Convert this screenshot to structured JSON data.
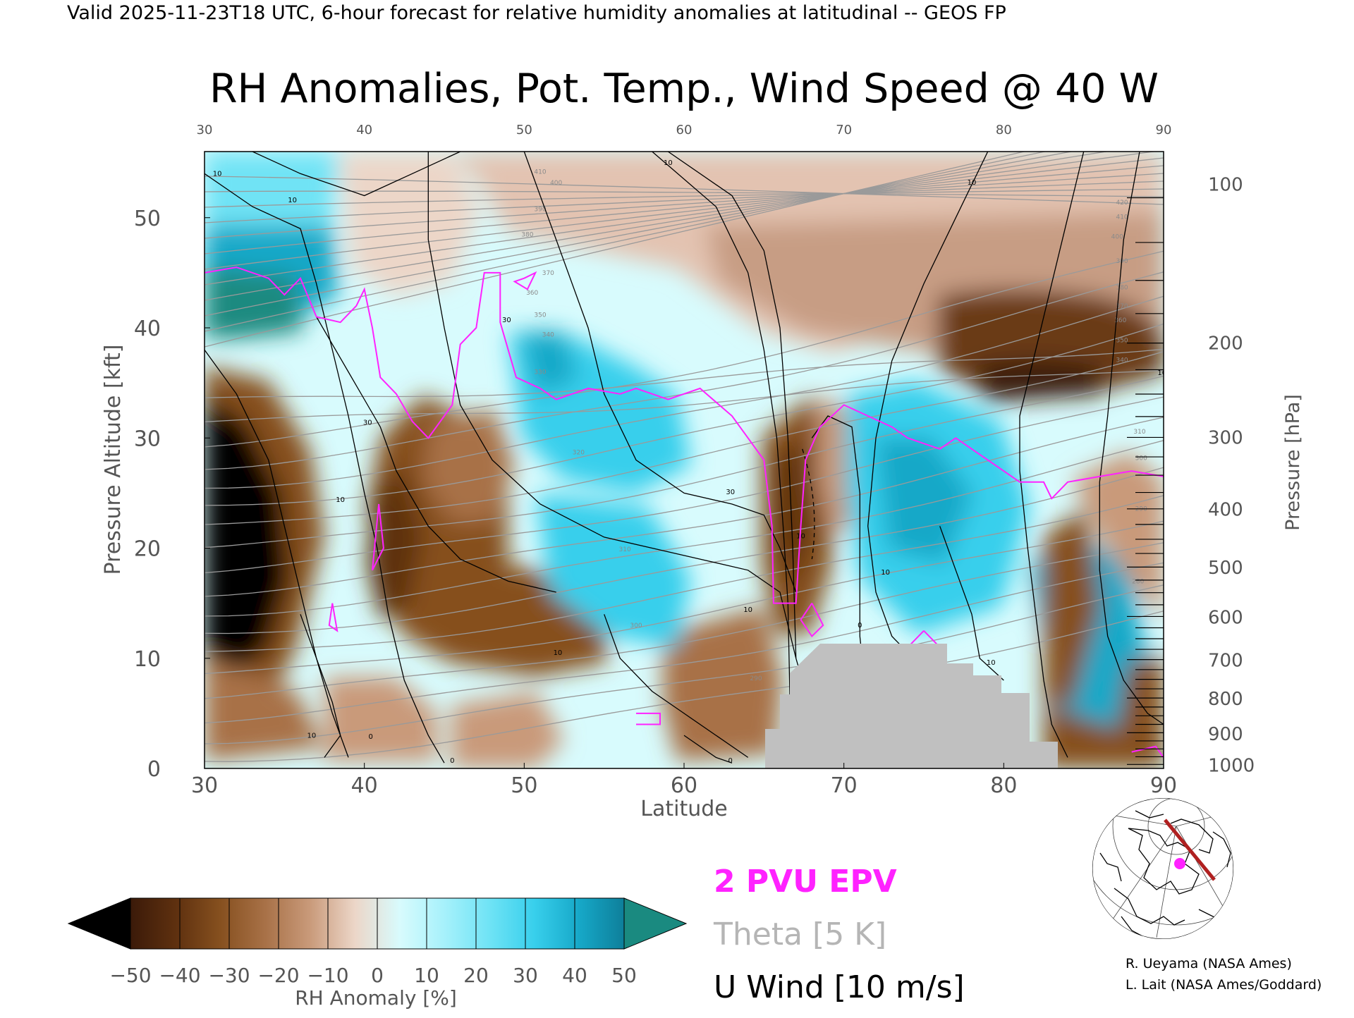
{
  "header": "Valid 2025-11-23T18 UTC, 6-hour forecast for relative humidity anomalies at latitudinal -- GEOS FP",
  "chart_data": {
    "type": "heatmap",
    "title": "RH Anomalies, Pot. Temp., Wind Speed @ 40 W",
    "xlabel": "Latitude",
    "ylabel": "Pressure Altitude [kft]",
    "y2label": "Pressure [hPa]",
    "xlim": [
      30,
      90
    ],
    "ylim": [
      0,
      56
    ],
    "x_ticks": [
      30,
      40,
      50,
      60,
      70,
      80,
      90
    ],
    "x_ticks_top": [
      30,
      40,
      50,
      60,
      70,
      80,
      90
    ],
    "y_ticks": [
      0,
      10,
      20,
      30,
      40,
      50
    ],
    "pressure_ticks": [
      {
        "hpa": 100,
        "kft": 53.1
      },
      {
        "hpa": 200,
        "kft": 38.7
      },
      {
        "hpa": 300,
        "kft": 30.1
      },
      {
        "hpa": 400,
        "kft": 23.6
      },
      {
        "hpa": 500,
        "kft": 18.3
      },
      {
        "hpa": 600,
        "kft": 13.8
      },
      {
        "hpa": 700,
        "kft": 9.9
      },
      {
        "hpa": 800,
        "kft": 6.4
      },
      {
        "hpa": 900,
        "kft": 3.2
      },
      {
        "hpa": 1000,
        "kft": 0.36
      }
    ],
    "colorbar": {
      "label": "RH Anomaly [%]",
      "ticks": [
        -50,
        -40,
        -30,
        -20,
        -10,
        0,
        10,
        20,
        30,
        40,
        50
      ],
      "tick_labels": [
        "−50",
        "−40",
        "−30",
        "−20",
        "−10",
        "0",
        "10",
        "20",
        "30",
        "40",
        "50"
      ],
      "colors": [
        "#3b1a09",
        "#5e300f",
        "#86501f",
        "#a87147",
        "#c99a7a",
        "#ecd6c8",
        "#d8fbfd",
        "#a6f1fb",
        "#6fe3f5",
        "#38cfec",
        "#16a8c8",
        "#0e7f9a"
      ],
      "under_color": "#000000",
      "over_color": "#1a8a80"
    },
    "legend": [
      {
        "label": "2 PVU EPV",
        "color": "#ff22ff"
      },
      {
        "label": "Theta [5 K]",
        "color": "#b5b5b5"
      },
      {
        "label": "U Wind [10 m/s]",
        "color": "#000000"
      }
    ],
    "theta_labels": [
      {
        "text": "410",
        "lat": 51.0,
        "kft": 54.0
      },
      {
        "text": "400",
        "lat": 52.0,
        "kft": 53.0
      },
      {
        "text": "390",
        "lat": 51.0,
        "kft": 50.6
      },
      {
        "text": "380",
        "lat": 50.2,
        "kft": 48.3
      },
      {
        "text": "370",
        "lat": 51.5,
        "kft": 44.8
      },
      {
        "text": "360",
        "lat": 50.5,
        "kft": 43.0
      },
      {
        "text": "350",
        "lat": 51.0,
        "kft": 41.0
      },
      {
        "text": "340",
        "lat": 51.5,
        "kft": 39.2
      },
      {
        "text": "330",
        "lat": 51.0,
        "kft": 35.8
      },
      {
        "text": "320",
        "lat": 53.4,
        "kft": 28.5
      },
      {
        "text": "310",
        "lat": 56.3,
        "kft": 19.7
      },
      {
        "text": "300",
        "lat": 57.0,
        "kft": 12.8
      },
      {
        "text": "290",
        "lat": 64.5,
        "kft": 8.0
      },
      {
        "text": "420",
        "lat": 87.4,
        "kft": 51.2
      },
      {
        "text": "410",
        "lat": 87.4,
        "kft": 49.9
      },
      {
        "text": "400",
        "lat": 87.1,
        "kft": 48.1
      },
      {
        "text": "390",
        "lat": 87.4,
        "kft": 45.9
      },
      {
        "text": "380",
        "lat": 87.4,
        "kft": 43.5
      },
      {
        "text": "370",
        "lat": 87.4,
        "kft": 41.8
      },
      {
        "text": "360",
        "lat": 87.3,
        "kft": 40.5
      },
      {
        "text": "350",
        "lat": 87.4,
        "kft": 38.7
      },
      {
        "text": "340",
        "lat": 87.4,
        "kft": 36.9
      },
      {
        "text": "310",
        "lat": 88.5,
        "kft": 30.4
      },
      {
        "text": "300",
        "lat": 88.6,
        "kft": 28.0
      },
      {
        "text": "290",
        "lat": 88.6,
        "kft": 23.4
      },
      {
        "text": "280",
        "lat": 88.4,
        "kft": 16.8
      }
    ],
    "wind_labels": [
      {
        "text": "10",
        "lat": 30.8,
        "kft": 53.8
      },
      {
        "text": "10",
        "lat": 35.5,
        "kft": 51.4
      },
      {
        "text": "10",
        "lat": 59.0,
        "kft": 54.8
      },
      {
        "text": "10",
        "lat": 78.0,
        "kft": 53.0
      },
      {
        "text": "30",
        "lat": 48.9,
        "kft": 40.5
      },
      {
        "text": "30",
        "lat": 40.2,
        "kft": 31.2
      },
      {
        "text": "30",
        "lat": 62.9,
        "kft": 24.9
      },
      {
        "text": "10",
        "lat": 38.5,
        "kft": 24.2
      },
      {
        "text": "10",
        "lat": 72.6,
        "kft": 17.6
      },
      {
        "text": "10",
        "lat": 52.1,
        "kft": 10.3
      },
      {
        "text": "10",
        "lat": 64.0,
        "kft": 14.2
      },
      {
        "text": "10",
        "lat": 79.2,
        "kft": 9.4
      },
      {
        "text": "10",
        "lat": 67.3,
        "kft": 20.9
      },
      {
        "text": "0",
        "lat": 40.4,
        "kft": 2.7
      },
      {
        "text": "10",
        "lat": 36.7,
        "kft": 2.8
      },
      {
        "text": "0",
        "lat": 45.5,
        "kft": 0.5
      },
      {
        "text": "0",
        "lat": 62.9,
        "kft": 0.5
      },
      {
        "text": "0",
        "lat": 71.0,
        "kft": 12.8
      },
      {
        "text": "10",
        "lat": 89.9,
        "kft": 35.7
      }
    ]
  },
  "locator_map": {
    "credits": [
      "R. Ueyama (NASA Ames)",
      "L. Lait (NASA Ames/Goddard)"
    ],
    "section_color": "#b02020",
    "marker_color": "#ff22ff"
  }
}
